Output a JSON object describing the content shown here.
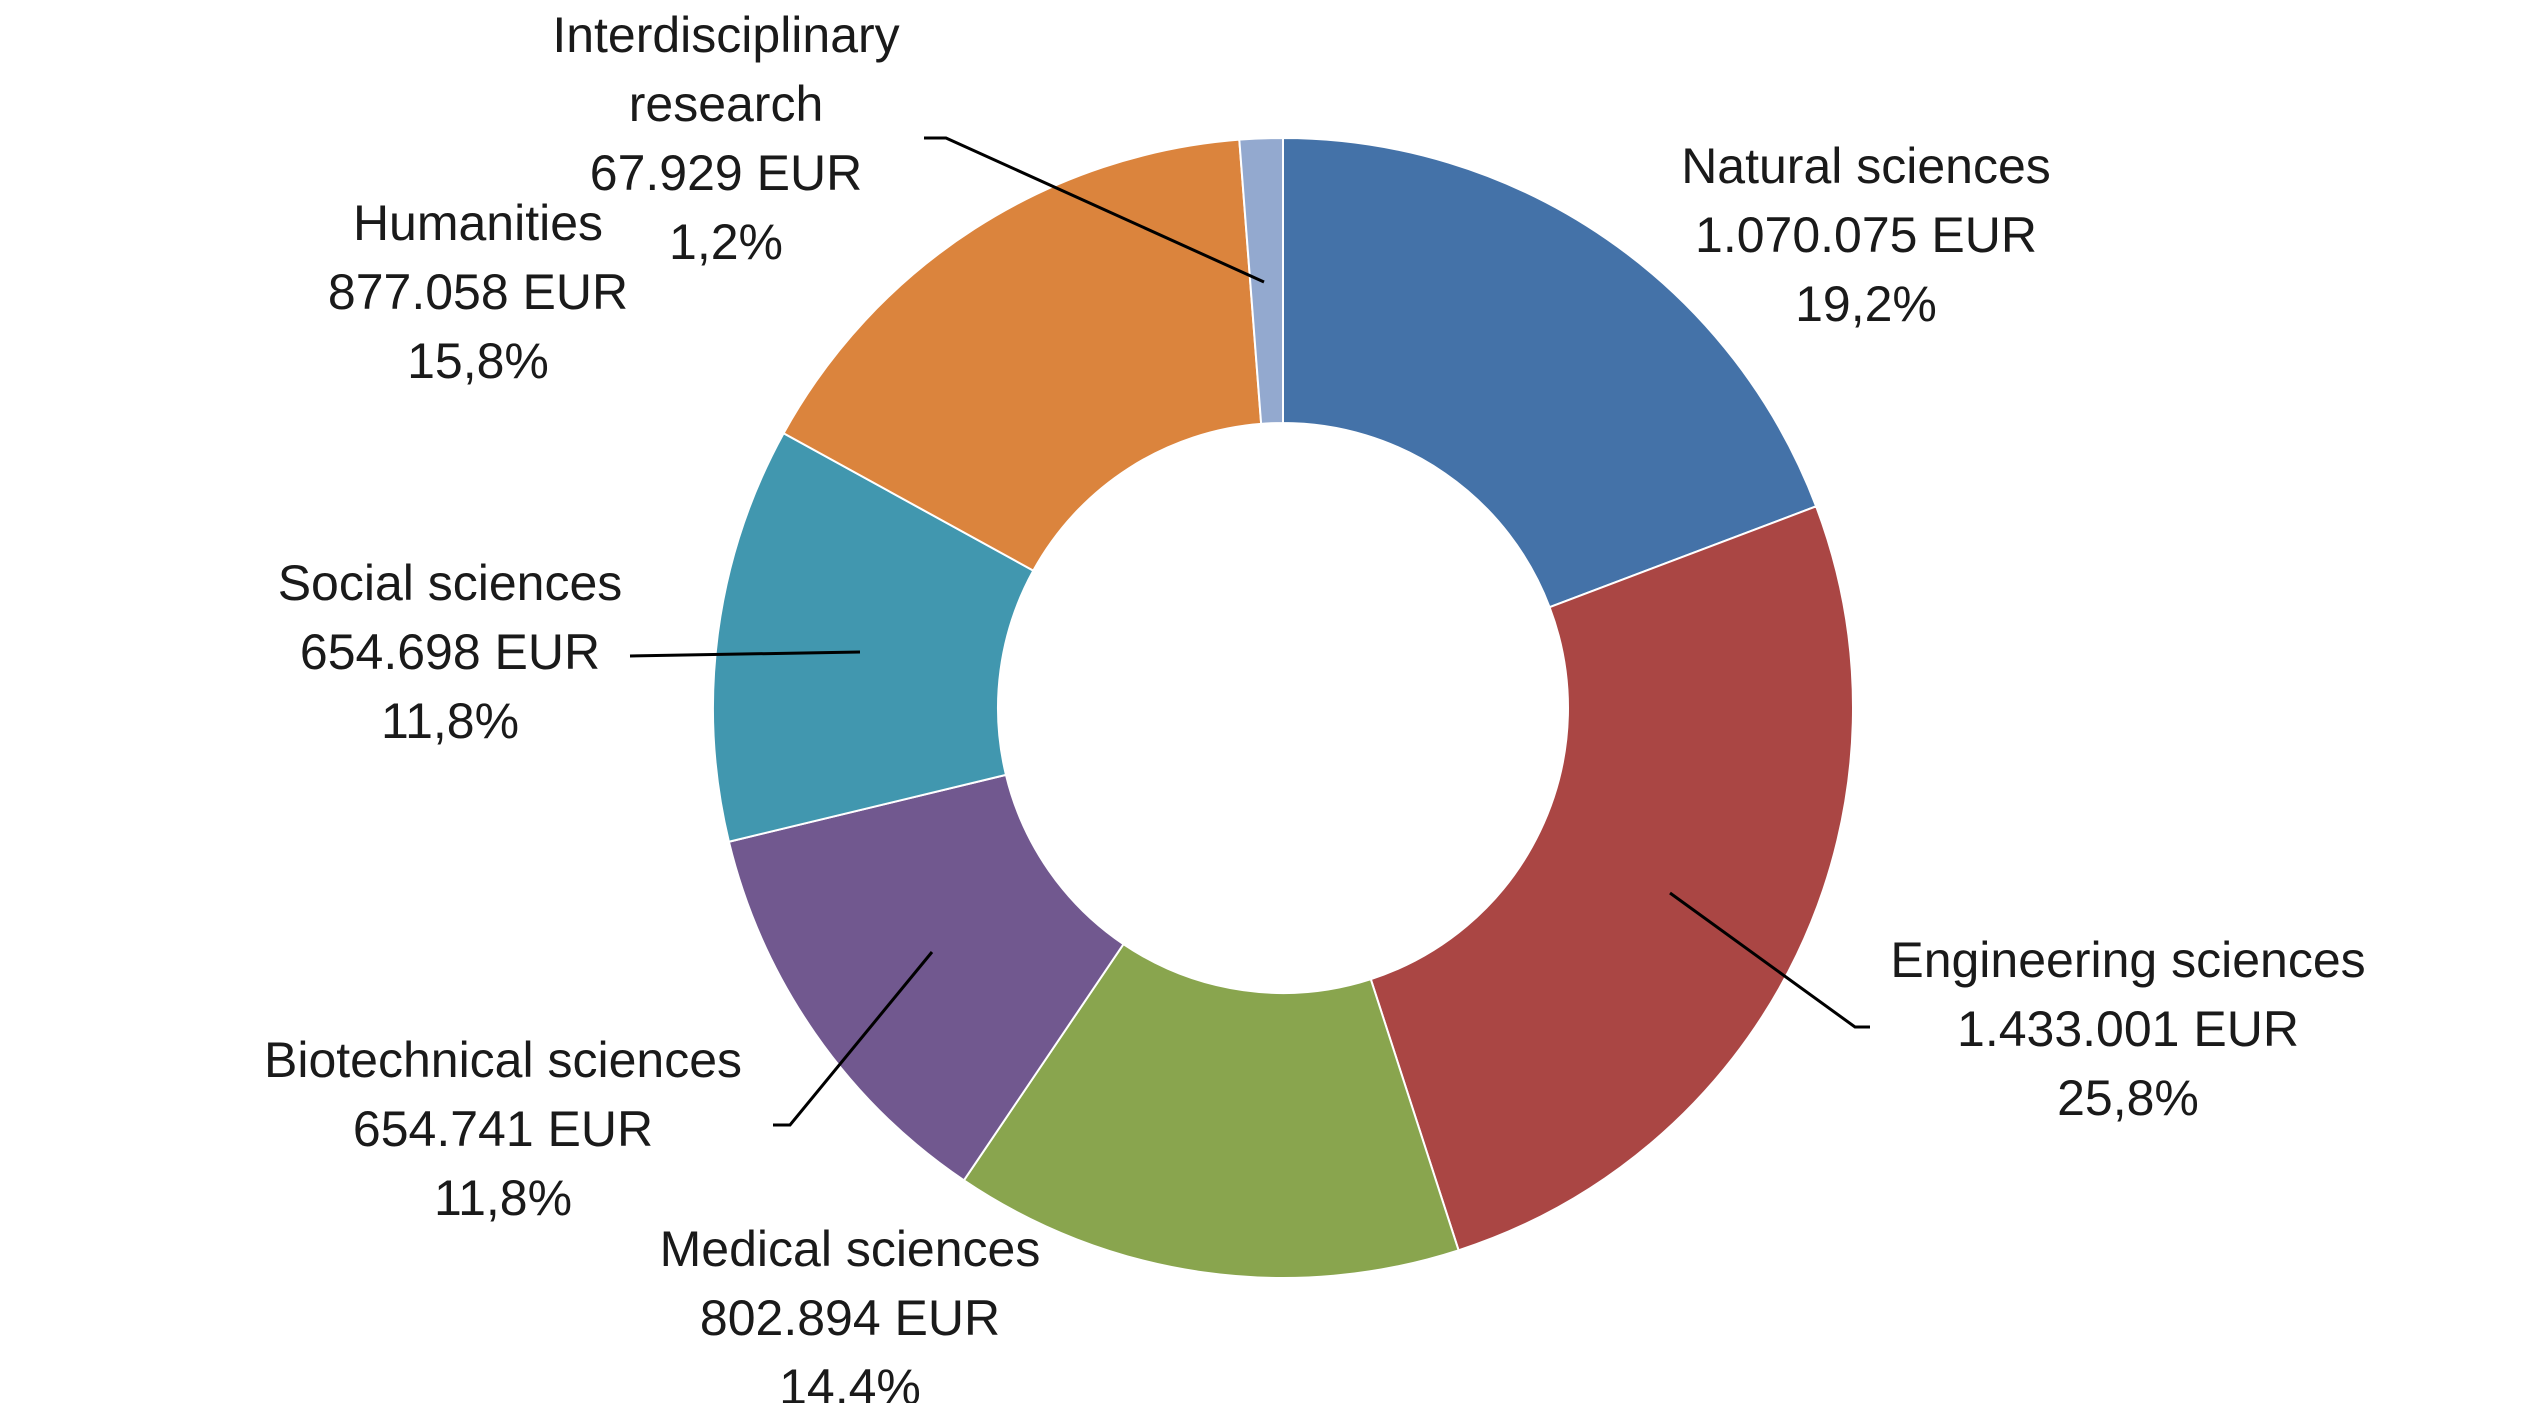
{
  "chart_data": {
    "type": "pie",
    "donut": true,
    "slices": [
      {
        "name": "Natural sciences",
        "value": 1070075,
        "value_label": "1.070.075 EUR",
        "percent": 19.2,
        "percent_label": "19,2%",
        "color": "#4472A8"
      },
      {
        "name": "Engineering sciences",
        "value": 1433001,
        "value_label": "1.433.001 EUR",
        "percent": 25.8,
        "percent_label": "25,8%",
        "color": "#AA4644"
      },
      {
        "name": "Medical sciences",
        "value": 802894,
        "value_label": "802.894 EUR",
        "percent": 14.4,
        "percent_label": "14,4%",
        "color": "#89A54E"
      },
      {
        "name": "Biotechnical sciences",
        "value": 654741,
        "value_label": "654.741 EUR",
        "percent": 11.8,
        "percent_label": "11,8%",
        "color": "#71588F"
      },
      {
        "name": "Social sciences",
        "value": 654698,
        "value_label": "654.698 EUR",
        "percent": 11.8,
        "percent_label": "11,8%",
        "color": "#4197AF"
      },
      {
        "name": "Humanities",
        "value": 877058,
        "value_label": "877.058 EUR",
        "percent": 15.8,
        "percent_label": "15,8%",
        "color": "#DB843D"
      },
      {
        "name": "Interdisciplinary research",
        "name_lines": [
          "Interdisciplinary",
          "research"
        ],
        "value": 67929,
        "value_label": "67.929 EUR",
        "percent": 1.2,
        "percent_label": "1,2%",
        "color": "#93A9CF"
      }
    ]
  }
}
